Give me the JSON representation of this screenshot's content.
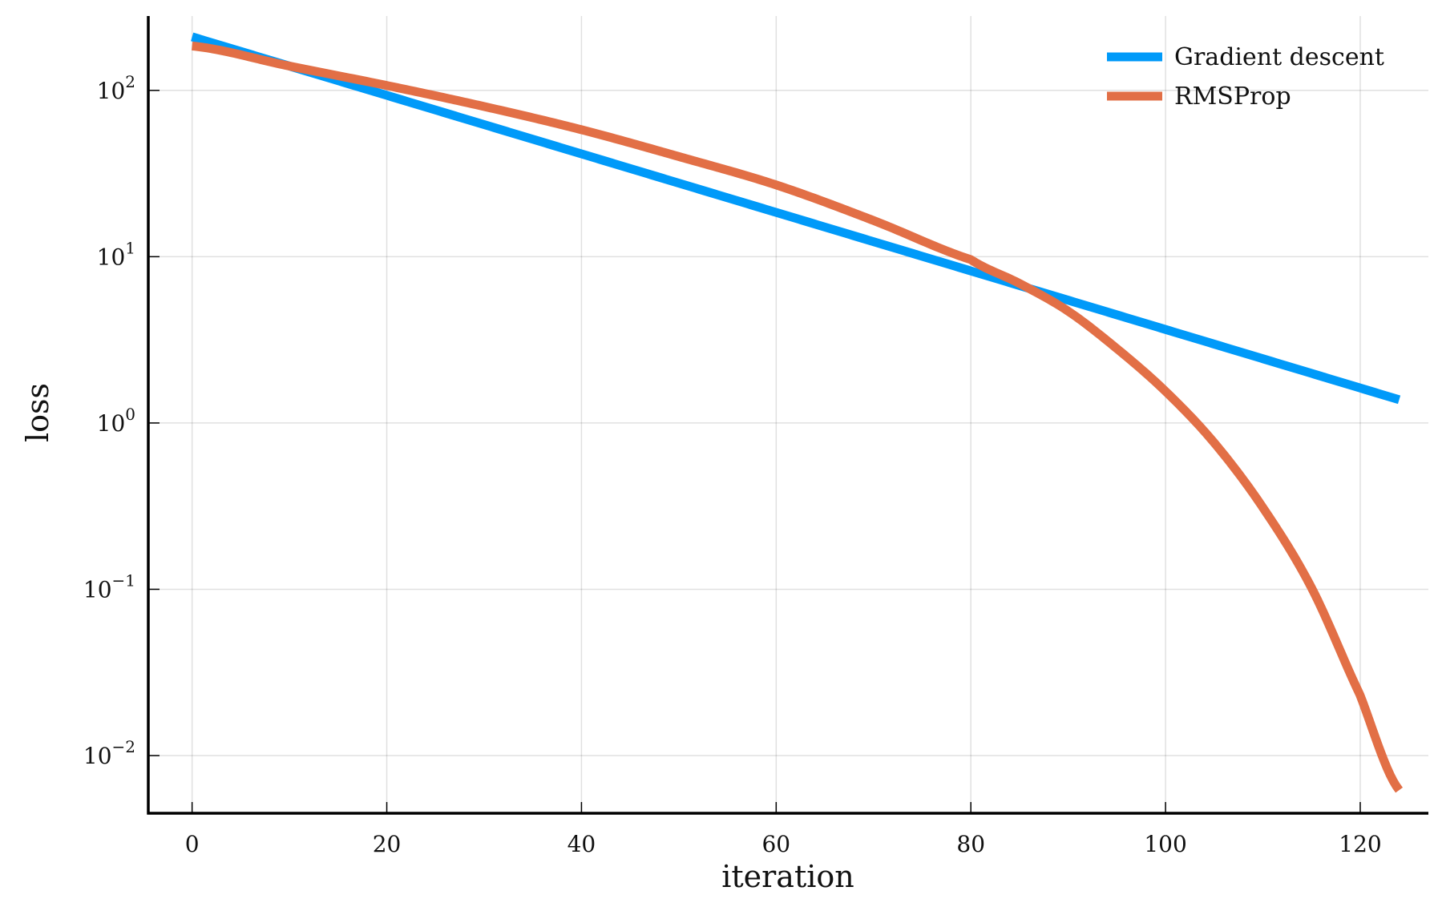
{
  "chart_data": {
    "type": "line",
    "title": "",
    "xlabel": "iteration",
    "ylabel": "loss",
    "x_scale": "linear",
    "y_scale": "log10",
    "xlim": [
      -4.5,
      127
    ],
    "ylim": [
      0.0045,
      280
    ],
    "grid": true,
    "legend_position": "top-right",
    "x_ticks": [
      {
        "value": 0,
        "label": "0"
      },
      {
        "value": 20,
        "label": "20"
      },
      {
        "value": 40,
        "label": "40"
      },
      {
        "value": 60,
        "label": "60"
      },
      {
        "value": 80,
        "label": "80"
      },
      {
        "value": 100,
        "label": "100"
      },
      {
        "value": 120,
        "label": "120"
      }
    ],
    "y_ticks": [
      {
        "value": 100,
        "base": "10",
        "exp": "2"
      },
      {
        "value": 10,
        "base": "10",
        "exp": "1"
      },
      {
        "value": 1,
        "base": "10",
        "exp": "0"
      },
      {
        "value": 0.1,
        "base": "10",
        "exp": "−1"
      },
      {
        "value": 0.01,
        "base": "10",
        "exp": "−2"
      }
    ],
    "series": [
      {
        "name": "Gradient descent",
        "color": "#009af9",
        "x": [
          0,
          124
        ],
        "y": [
          210,
          1.38
        ]
      },
      {
        "name": "RMSProp",
        "color": "#e26f46",
        "x": [
          0,
          10,
          20,
          30,
          40,
          50,
          60,
          70,
          80,
          85,
          90,
          95,
          100,
          105,
          110,
          115,
          120,
          124
        ],
        "y": [
          185,
          140,
          107,
          80,
          58,
          40,
          27,
          16.5,
          9.6,
          6.9,
          4.7,
          2.8,
          1.55,
          0.76,
          0.31,
          0.102,
          0.023,
          0.0062
        ]
      }
    ]
  }
}
